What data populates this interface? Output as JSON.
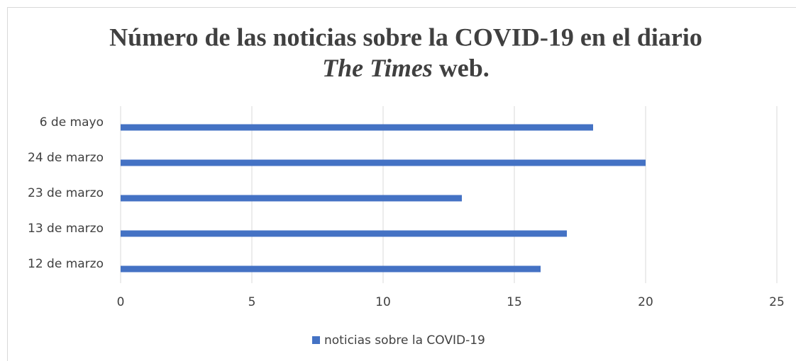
{
  "chart_data": {
    "type": "barh",
    "title": [
      "Número de las noticias sobre la COVID-19 en el diario",
      "The Times",
      "web."
    ],
    "categories": [
      "12 de marzo",
      "13 de marzo",
      "23 de marzo",
      "24 de marzo",
      "6 de mayo"
    ],
    "series": [
      {
        "name": "noticias sobre la COVID-19",
        "color": "#4472c4",
        "values": [
          16,
          17,
          13,
          20,
          18
        ]
      }
    ],
    "xlim": [
      0,
      25
    ],
    "xticks": [
      0,
      5,
      10,
      15,
      20,
      25
    ],
    "grid": true,
    "legend": "bottom"
  }
}
